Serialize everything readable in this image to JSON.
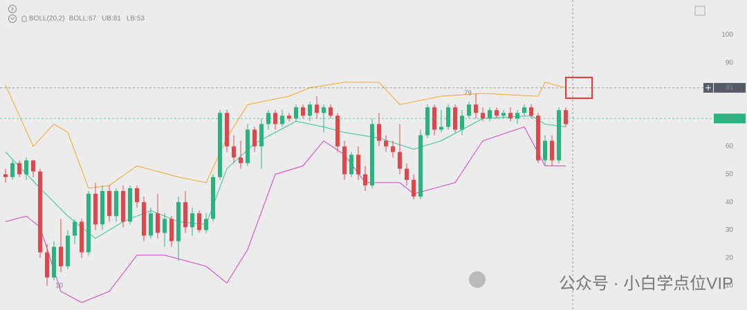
{
  "chart_data": {
    "type": "candlestick",
    "indicator": "BOLL(20,2)",
    "up_color": "#2bb37f",
    "down_color": "#e0474c",
    "ylim": [
      1,
      112
    ],
    "yticks": [
      10,
      20,
      30,
      40,
      50,
      60,
      70,
      80,
      90,
      100
    ],
    "grid": false,
    "candles": [
      [
        50,
        52,
        47,
        49
      ],
      [
        49,
        55,
        48,
        54
      ],
      [
        54,
        55,
        49,
        50
      ],
      [
        50,
        56,
        48,
        55
      ],
      [
        55,
        55,
        49,
        51
      ],
      [
        51,
        52,
        20,
        22
      ],
      [
        22,
        25,
        10,
        13
      ],
      [
        13,
        26,
        12,
        24
      ],
      [
        24,
        34,
        15,
        17
      ],
      [
        17,
        30,
        16,
        28
      ],
      [
        28,
        34,
        25,
        33
      ],
      [
        33,
        34,
        20,
        22
      ],
      [
        22,
        44,
        21,
        43
      ],
      [
        43,
        47,
        30,
        32
      ],
      [
        32,
        46,
        30,
        44
      ],
      [
        44,
        46,
        33,
        35
      ],
      [
        35,
        45,
        33,
        44
      ],
      [
        44,
        46,
        31,
        33
      ],
      [
        33,
        46,
        32,
        45
      ],
      [
        45,
        46,
        38,
        40
      ],
      [
        40,
        42,
        26,
        28
      ],
      [
        28,
        38,
        27,
        36
      ],
      [
        36,
        43,
        27,
        29
      ],
      [
        29,
        36,
        24,
        34
      ],
      [
        34,
        35,
        24,
        26
      ],
      [
        26,
        42,
        19,
        40
      ],
      [
        40,
        44,
        29,
        31
      ],
      [
        31,
        38,
        28,
        36
      ],
      [
        36,
        37,
        29,
        30
      ],
      [
        30,
        36,
        29,
        34
      ],
      [
        34,
        50,
        33,
        49
      ],
      [
        49,
        73,
        48,
        72
      ],
      [
        72,
        73,
        58,
        60
      ],
      [
        60,
        64,
        54,
        56
      ],
      [
        56,
        62,
        52,
        54
      ],
      [
        54,
        68,
        53,
        66
      ],
      [
        66,
        67,
        58,
        60
      ],
      [
        60,
        70,
        52,
        68
      ],
      [
        68,
        73,
        66,
        72
      ],
      [
        72,
        73,
        66,
        68
      ],
      [
        68,
        73,
        67,
        71
      ],
      [
        71,
        72,
        69,
        70
      ],
      [
        70,
        75,
        69,
        74
      ],
      [
        74,
        75,
        70,
        71
      ],
      [
        71,
        76,
        69,
        75
      ],
      [
        75,
        78,
        70,
        72
      ],
      [
        72,
        75,
        65,
        74
      ],
      [
        74,
        75,
        70,
        71
      ],
      [
        71,
        72,
        58,
        60
      ],
      [
        60,
        62,
        48,
        50
      ],
      [
        50,
        58,
        49,
        57
      ],
      [
        57,
        60,
        48,
        50
      ],
      [
        50,
        53,
        44,
        46
      ],
      [
        46,
        70,
        45,
        68
      ],
      [
        68,
        72,
        60,
        62
      ],
      [
        62,
        64,
        58,
        60
      ],
      [
        60,
        62,
        56,
        58
      ],
      [
        58,
        68,
        50,
        52
      ],
      [
        52,
        54,
        46,
        48
      ],
      [
        48,
        50,
        41,
        42
      ],
      [
        42,
        66,
        41,
        64
      ],
      [
        64,
        75,
        63,
        74
      ],
      [
        74,
        75,
        64,
        66
      ],
      [
        66,
        73,
        65,
        67
      ],
      [
        67,
        75,
        66,
        74
      ],
      [
        74,
        75,
        65,
        66
      ],
      [
        66,
        73,
        64,
        71
      ],
      [
        71,
        76,
        70,
        75
      ],
      [
        75,
        79,
        70,
        72
      ],
      [
        72,
        74,
        69,
        70
      ],
      [
        70,
        74,
        69,
        73
      ],
      [
        73,
        74,
        70,
        71
      ],
      [
        71,
        73,
        70,
        72
      ],
      [
        72,
        74,
        69,
        70
      ],
      [
        70,
        73,
        68,
        72
      ],
      [
        72,
        75,
        71,
        74
      ],
      [
        74,
        75,
        70,
        71
      ],
      [
        71,
        72,
        54,
        55
      ],
      [
        55,
        64,
        53,
        62
      ],
      [
        62,
        64,
        53,
        55
      ],
      [
        55,
        74,
        54,
        73
      ],
      [
        73,
        74,
        67,
        68
      ]
    ],
    "max_label": 79,
    "min_label": 10,
    "series": [
      {
        "name": "BOLL",
        "label": "BOLL:67",
        "color": "#2ec4a0",
        "x": [
          0,
          5,
          9,
          13,
          17,
          21,
          25,
          29,
          32,
          36,
          42,
          46,
          49,
          54,
          59,
          63,
          69,
          76,
          78,
          81
        ],
        "values": [
          58,
          45,
          35,
          27,
          33,
          37,
          33,
          32,
          52,
          61,
          69,
          67,
          65,
          63,
          59,
          62,
          70,
          71,
          68,
          67
        ]
      },
      {
        "name": "UB",
        "label": "UB:81",
        "color": "#f5a623",
        "x": [
          0,
          4,
          7,
          9,
          12,
          15,
          19,
          25,
          29,
          32,
          35,
          41,
          44,
          49,
          54,
          57,
          63,
          69,
          77,
          78,
          81
        ],
        "values": [
          82,
          60,
          68,
          65,
          45,
          46,
          53,
          49,
          47,
          63,
          75,
          78,
          81,
          83,
          83,
          75,
          78,
          79,
          78,
          83,
          81
        ]
      },
      {
        "name": "LB",
        "label": "LB:53",
        "color": "#d63fbf",
        "x": [
          0,
          3,
          5,
          8,
          11,
          15,
          19,
          23,
          29,
          32,
          35,
          39,
          43,
          46,
          49,
          52,
          57,
          59,
          65,
          69,
          75,
          78,
          81
        ],
        "values": [
          33,
          35,
          31,
          8,
          4,
          8,
          21,
          21,
          17,
          11,
          23,
          50,
          53,
          62,
          57,
          47,
          47,
          43,
          47,
          62,
          67,
          53,
          53
        ]
      }
    ],
    "price_tags": [
      {
        "value": 81,
        "color": "#555b66"
      },
      {
        "value": 70,
        "color": "#2bb37f"
      }
    ],
    "watermark": "公众号 · 小白学点位VIP"
  }
}
